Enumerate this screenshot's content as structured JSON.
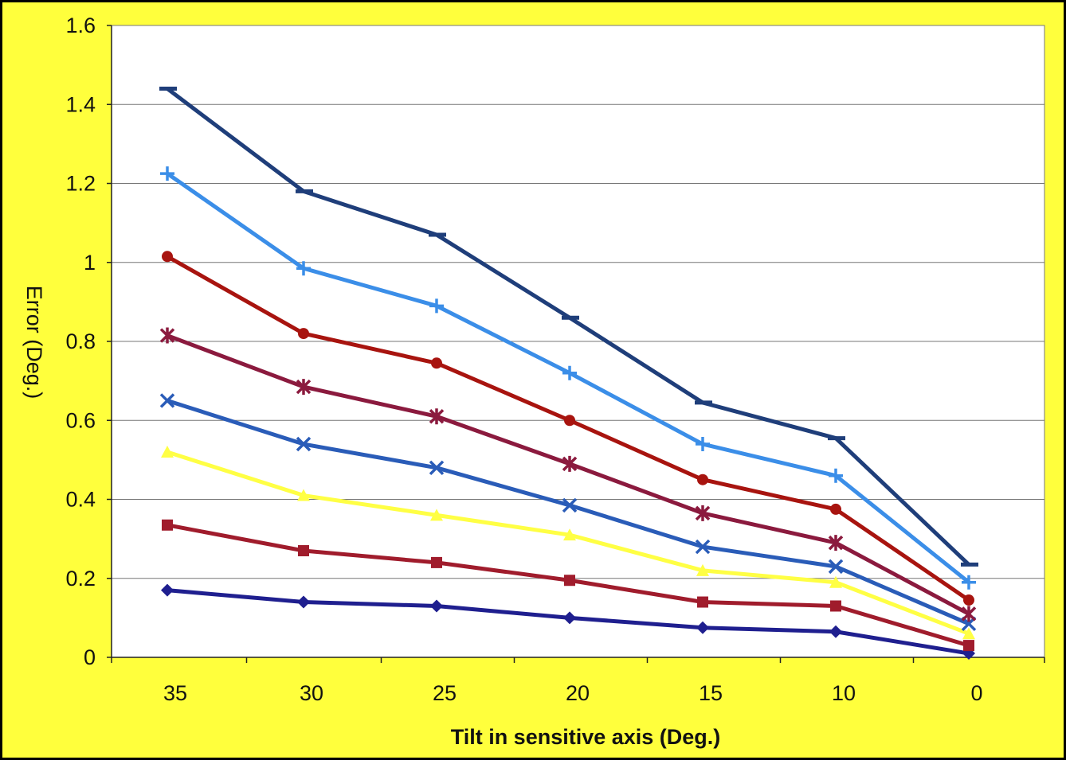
{
  "chart_data": {
    "type": "line",
    "title": "",
    "xlabel": "Tilt in sensitive axis (Deg.)",
    "ylabel": "Error (Deg.)",
    "categories": [
      "35",
      "30",
      "25",
      "20",
      "15",
      "10",
      "0"
    ],
    "ylim": [
      0,
      1.6
    ],
    "yticks": [
      "0",
      "0.2",
      "0.4",
      "0.6",
      "0.8",
      "1",
      "1.2",
      "1.4",
      "1.6"
    ],
    "grid": true,
    "legend": "none",
    "background_color": "#ffff3c",
    "plot_color": "#ffffff",
    "series": [
      {
        "color": "#1f1f8f",
        "marker": "diamond",
        "values": [
          0.17,
          0.14,
          0.13,
          0.1,
          0.075,
          0.065,
          0.01
        ]
      },
      {
        "color": "#a01c2c",
        "marker": "square",
        "values": [
          0.335,
          0.27,
          0.24,
          0.195,
          0.14,
          0.13,
          0.03
        ]
      },
      {
        "color": "#ffff44",
        "marker": "triangle",
        "values": [
          0.52,
          0.41,
          0.36,
          0.31,
          0.22,
          0.19,
          0.06
        ]
      },
      {
        "color": "#2a5cb8",
        "marker": "x",
        "values": [
          0.65,
          0.54,
          0.48,
          0.385,
          0.28,
          0.23,
          0.085
        ]
      },
      {
        "color": "#8b1a3e",
        "marker": "star",
        "values": [
          0.815,
          0.685,
          0.61,
          0.49,
          0.365,
          0.29,
          0.11
        ]
      },
      {
        "color": "#a8140f",
        "marker": "circle",
        "values": [
          1.015,
          0.82,
          0.745,
          0.6,
          0.45,
          0.375,
          0.145
        ]
      },
      {
        "color": "#3b8ee8",
        "marker": "plus",
        "values": [
          1.225,
          0.985,
          0.89,
          0.72,
          0.54,
          0.46,
          0.19
        ]
      },
      {
        "color": "#1f3e7a",
        "marker": "dash",
        "values": [
          1.44,
          1.18,
          1.07,
          0.86,
          0.645,
          0.555,
          0.235
        ]
      }
    ]
  }
}
